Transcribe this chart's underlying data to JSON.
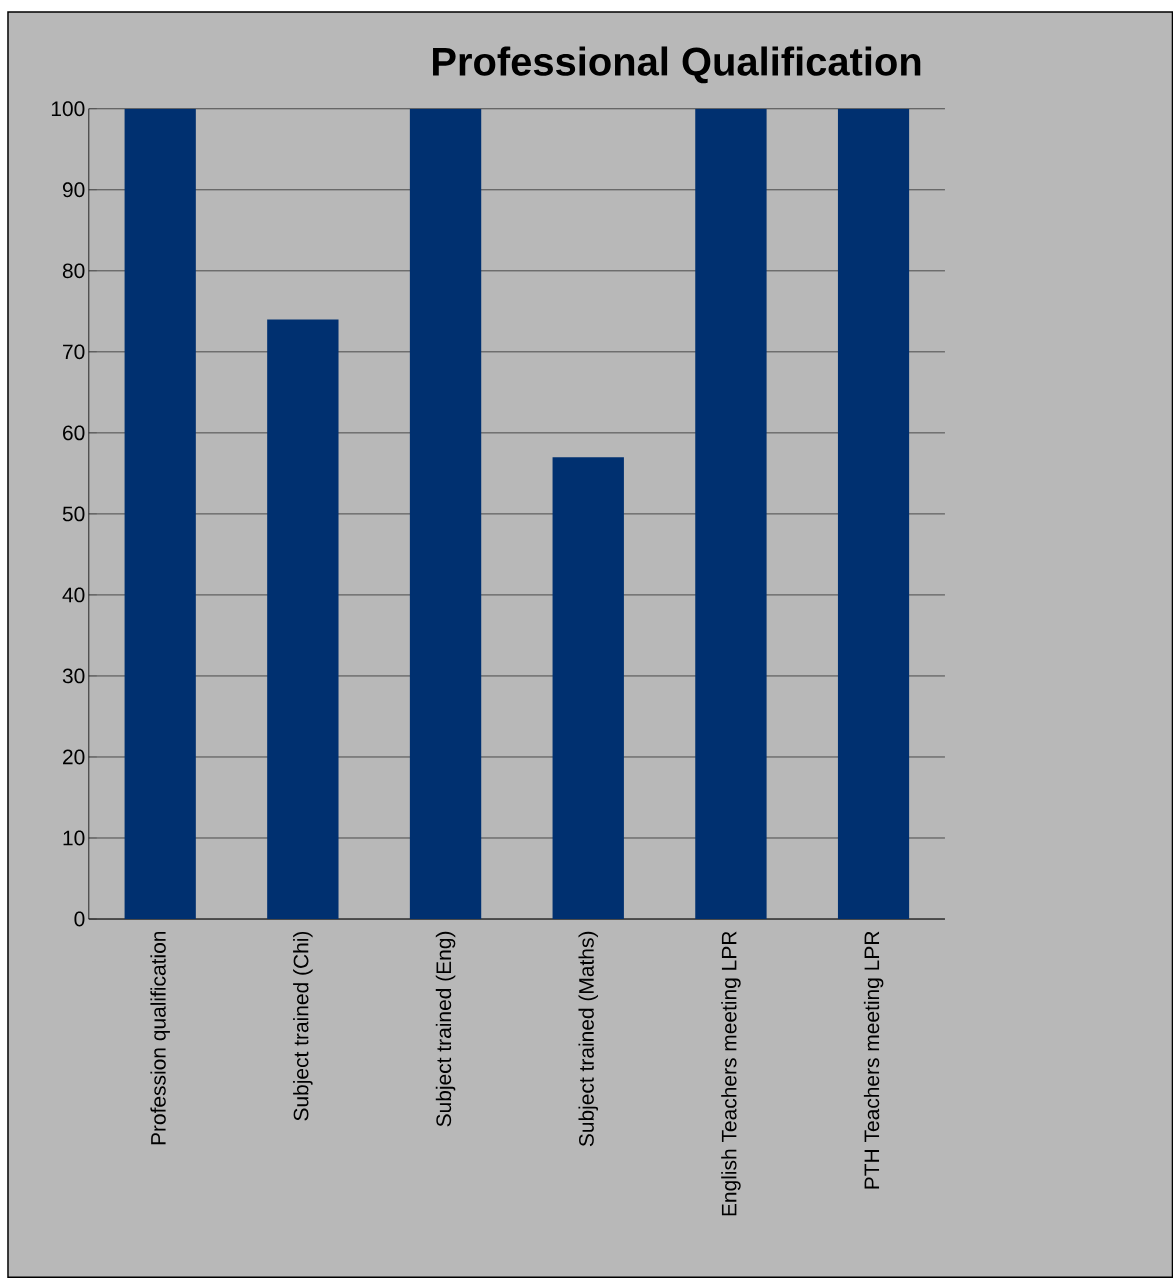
{
  "chart_data": {
    "type": "bar",
    "title": "Professional Qualification",
    "categories": [
      "Profession qualification",
      "Subject trained (Chi)",
      "Subject trained (Eng)",
      "Subject trained (Maths)",
      "English Teachers meeting LPR",
      "PTH Teachers meeting LPR"
    ],
    "values": [
      100,
      74,
      100,
      57,
      100,
      100
    ],
    "color": "#003070",
    "ylim": [
      0,
      100
    ],
    "yticks": [
      0,
      10,
      20,
      30,
      40,
      50,
      60,
      70,
      80,
      90,
      100
    ],
    "grid": "y"
  }
}
